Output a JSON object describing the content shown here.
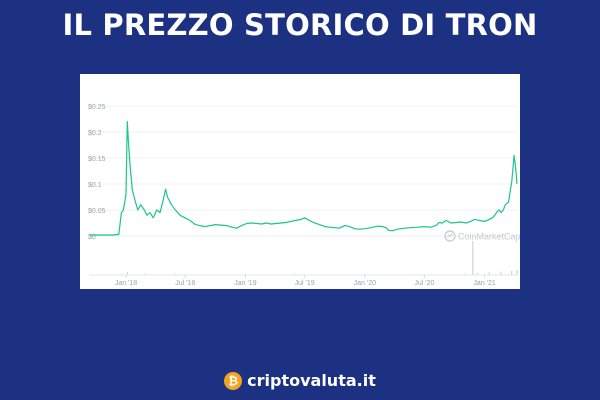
{
  "header": {
    "title": "IL PREZZO STORICO DI TRON"
  },
  "brand": {
    "logo_glyph": "₿",
    "name": "criptovaluta.it"
  },
  "colors": {
    "background": "#1d3183",
    "line": "#1cc48e",
    "title": "#ffffff",
    "brand_logo": "#f3a521"
  },
  "chart_data": {
    "type": "line",
    "watermark": "CoinMarketCap",
    "y_ticks": [
      "$0.25",
      "$0.2",
      "$0.15",
      "$0.1",
      "$0.05",
      "$0"
    ],
    "ylim": [
      0,
      0.25
    ],
    "x_ticks": [
      "Jan '18",
      "Jul '18",
      "Jan '19",
      "Jul '19",
      "Jan '20",
      "Jul '20",
      "Jan '21"
    ],
    "x_tick_positions": [
      "2018-01-01",
      "2018-07-01",
      "2019-01-01",
      "2019-07-01",
      "2020-01-01",
      "2020-07-01",
      "2021-01-01"
    ],
    "xlim": [
      "2017-09-13",
      "2021-04-10"
    ],
    "series": [
      {
        "x": [
          "2017-09-13",
          "2017-10-15",
          "2017-11-20",
          "2017-12-10",
          "2017-12-18",
          "2017-12-24",
          "2018-01-01",
          "2018-01-05",
          "2018-01-08",
          "2018-01-13",
          "2018-01-20",
          "2018-01-28",
          "2018-02-06",
          "2018-02-15",
          "2018-02-26",
          "2018-03-06",
          "2018-03-15",
          "2018-03-25",
          "2018-04-05",
          "2018-04-15",
          "2018-04-25",
          "2018-05-02",
          "2018-05-08",
          "2018-05-20",
          "2018-06-01",
          "2018-06-15",
          "2018-06-30",
          "2018-07-15",
          "2018-08-01",
          "2018-08-15",
          "2018-09-01",
          "2018-09-15",
          "2018-10-01",
          "2018-10-20",
          "2018-11-05",
          "2018-11-20",
          "2018-12-05",
          "2018-12-20",
          "2019-01-05",
          "2019-01-20",
          "2019-02-05",
          "2019-02-20",
          "2019-03-05",
          "2019-03-20",
          "2019-04-05",
          "2019-04-20",
          "2019-05-05",
          "2019-05-20",
          "2019-06-05",
          "2019-06-20",
          "2019-07-01",
          "2019-07-15",
          "2019-08-01",
          "2019-08-15",
          "2019-09-01",
          "2019-09-15",
          "2019-10-01",
          "2019-10-15",
          "2019-11-01",
          "2019-11-15",
          "2019-12-01",
          "2019-12-15",
          "2020-01-01",
          "2020-01-20",
          "2020-02-10",
          "2020-02-25",
          "2020-03-08",
          "2020-03-13",
          "2020-03-25",
          "2020-04-10",
          "2020-05-01",
          "2020-05-20",
          "2020-06-10",
          "2020-07-01",
          "2020-07-20",
          "2020-08-05",
          "2020-08-15",
          "2020-08-25",
          "2020-09-05",
          "2020-09-20",
          "2020-10-05",
          "2020-10-20",
          "2020-11-05",
          "2020-11-20",
          "2020-12-01",
          "2020-12-15",
          "2021-01-01",
          "2021-01-15",
          "2021-01-25",
          "2021-02-01",
          "2021-02-10",
          "2021-02-15",
          "2021-02-20",
          "2021-02-27",
          "2021-03-05",
          "2021-03-15",
          "2021-03-25",
          "2021-04-01",
          "2021-04-06",
          "2021-04-10"
        ],
        "y": [
          0.002,
          0.002,
          0.002,
          0.003,
          0.045,
          0.05,
          0.08,
          0.22,
          0.185,
          0.14,
          0.09,
          0.07,
          0.05,
          0.06,
          0.05,
          0.04,
          0.045,
          0.035,
          0.05,
          0.045,
          0.07,
          0.09,
          0.075,
          0.06,
          0.05,
          0.04,
          0.035,
          0.03,
          0.022,
          0.02,
          0.018,
          0.02,
          0.022,
          0.021,
          0.02,
          0.017,
          0.015,
          0.02,
          0.024,
          0.025,
          0.024,
          0.023,
          0.025,
          0.023,
          0.024,
          0.025,
          0.026,
          0.028,
          0.03,
          0.032,
          0.035,
          0.03,
          0.025,
          0.022,
          0.018,
          0.017,
          0.016,
          0.015,
          0.02,
          0.018,
          0.014,
          0.013,
          0.014,
          0.016,
          0.019,
          0.018,
          0.015,
          0.011,
          0.01,
          0.013,
          0.015,
          0.016,
          0.017,
          0.018,
          0.017,
          0.02,
          0.026,
          0.025,
          0.03,
          0.025,
          0.026,
          0.027,
          0.025,
          0.028,
          0.032,
          0.03,
          0.028,
          0.032,
          0.035,
          0.04,
          0.048,
          0.05,
          0.045,
          0.05,
          0.06,
          0.065,
          0.105,
          0.155,
          0.13,
          0.1
        ]
      }
    ],
    "volume": {
      "x": [
        "2017-09-13",
        "2017-10-15",
        "2017-11-20",
        "2017-12-20",
        "2018-01-05",
        "2018-03-01",
        "2018-06-01",
        "2019-01-01",
        "2019-06-01",
        "2020-01-01",
        "2020-06-01",
        "2020-11-01",
        "2020-11-26",
        "2020-12-10",
        "2021-01-15",
        "2021-02-20",
        "2021-03-25",
        "2021-04-10"
      ],
      "level": [
        0.02,
        0.02,
        0.02,
        0.03,
        0.08,
        0.04,
        0.03,
        0.02,
        0.03,
        0.02,
        0.02,
        0.03,
        1.0,
        0.05,
        0.08,
        0.1,
        0.12,
        0.15
      ]
    },
    "grid": true,
    "legend": "none"
  }
}
